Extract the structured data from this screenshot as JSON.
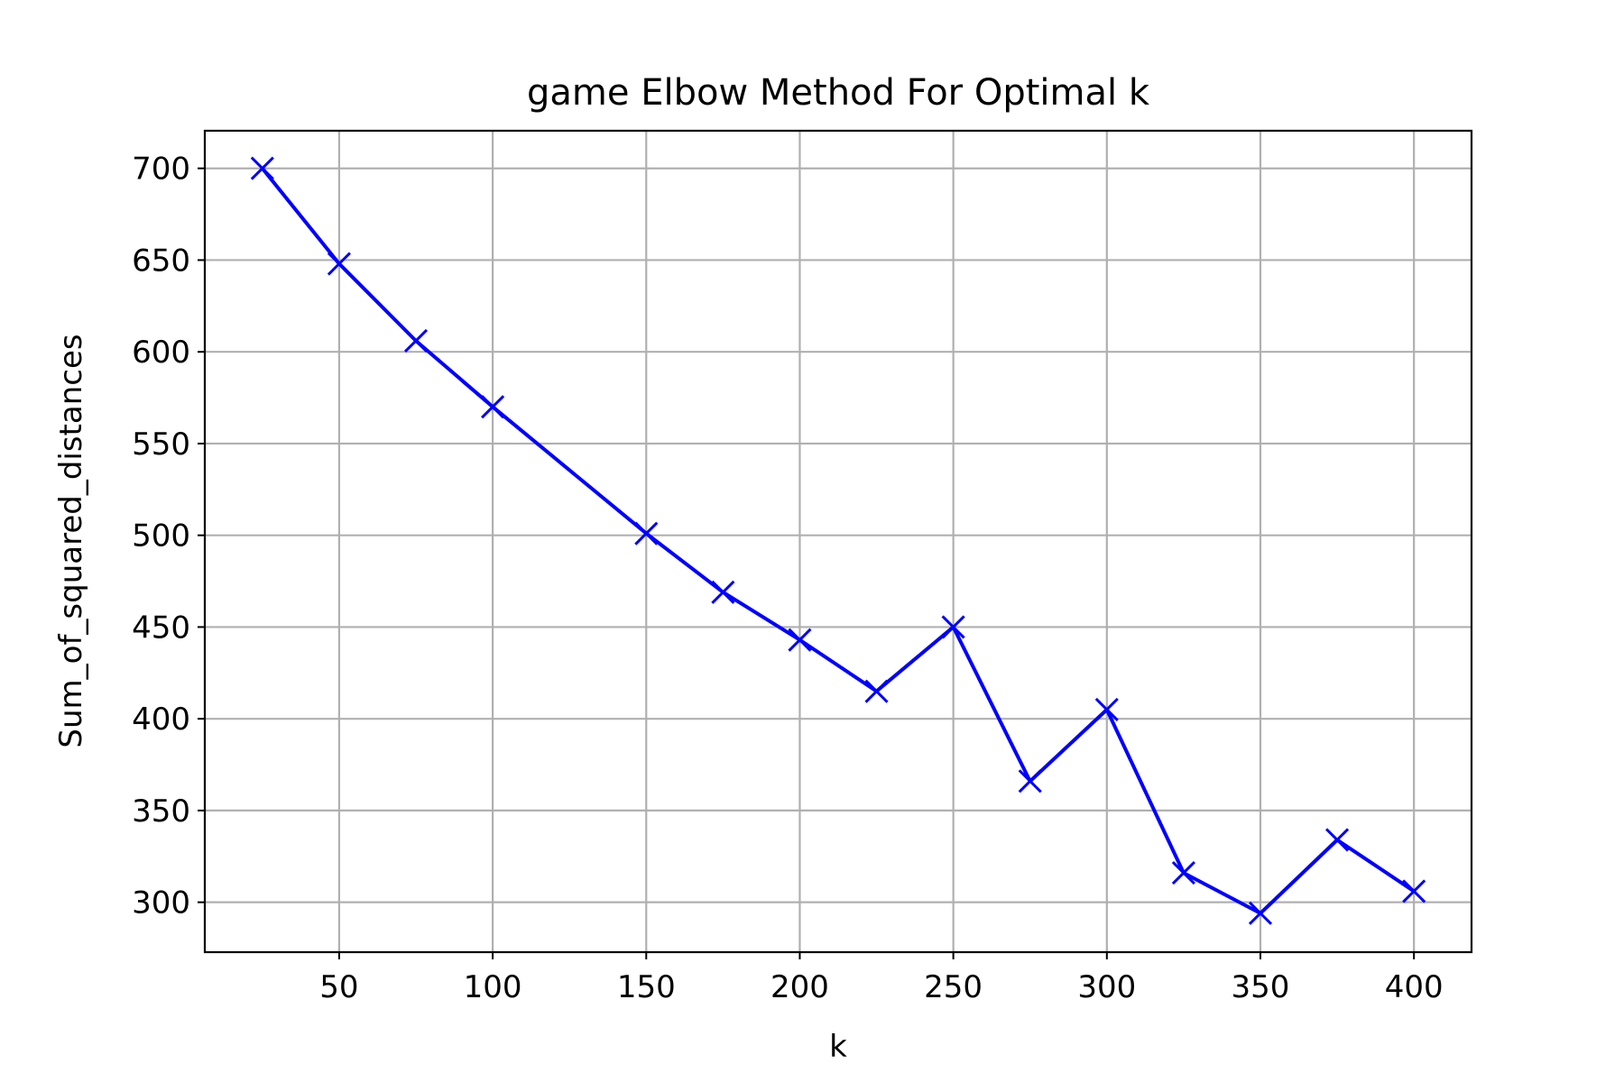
{
  "chart_data": {
    "type": "line",
    "title": "game Elbow Method For Optimal k",
    "xlabel": "k",
    "ylabel": "Sum_of_squared_distances",
    "xlim": [
      6.25,
      418.75
    ],
    "ylim": [
      272.8,
      720.5
    ],
    "xticks": [
      50,
      100,
      150,
      200,
      250,
      300,
      350,
      400
    ],
    "yticks": [
      300,
      350,
      400,
      450,
      500,
      550,
      600,
      650,
      700
    ],
    "grid": true,
    "marker": "x",
    "line_color": "#0000ff",
    "series": [
      {
        "x": [
          25,
          50,
          75,
          100,
          150,
          175,
          200,
          225,
          250,
          275,
          300,
          325,
          350,
          375,
          400
        ],
        "values": [
          700,
          648,
          606,
          570,
          501,
          469,
          443,
          415,
          450,
          366,
          405,
          316,
          294,
          334,
          306
        ]
      }
    ]
  }
}
